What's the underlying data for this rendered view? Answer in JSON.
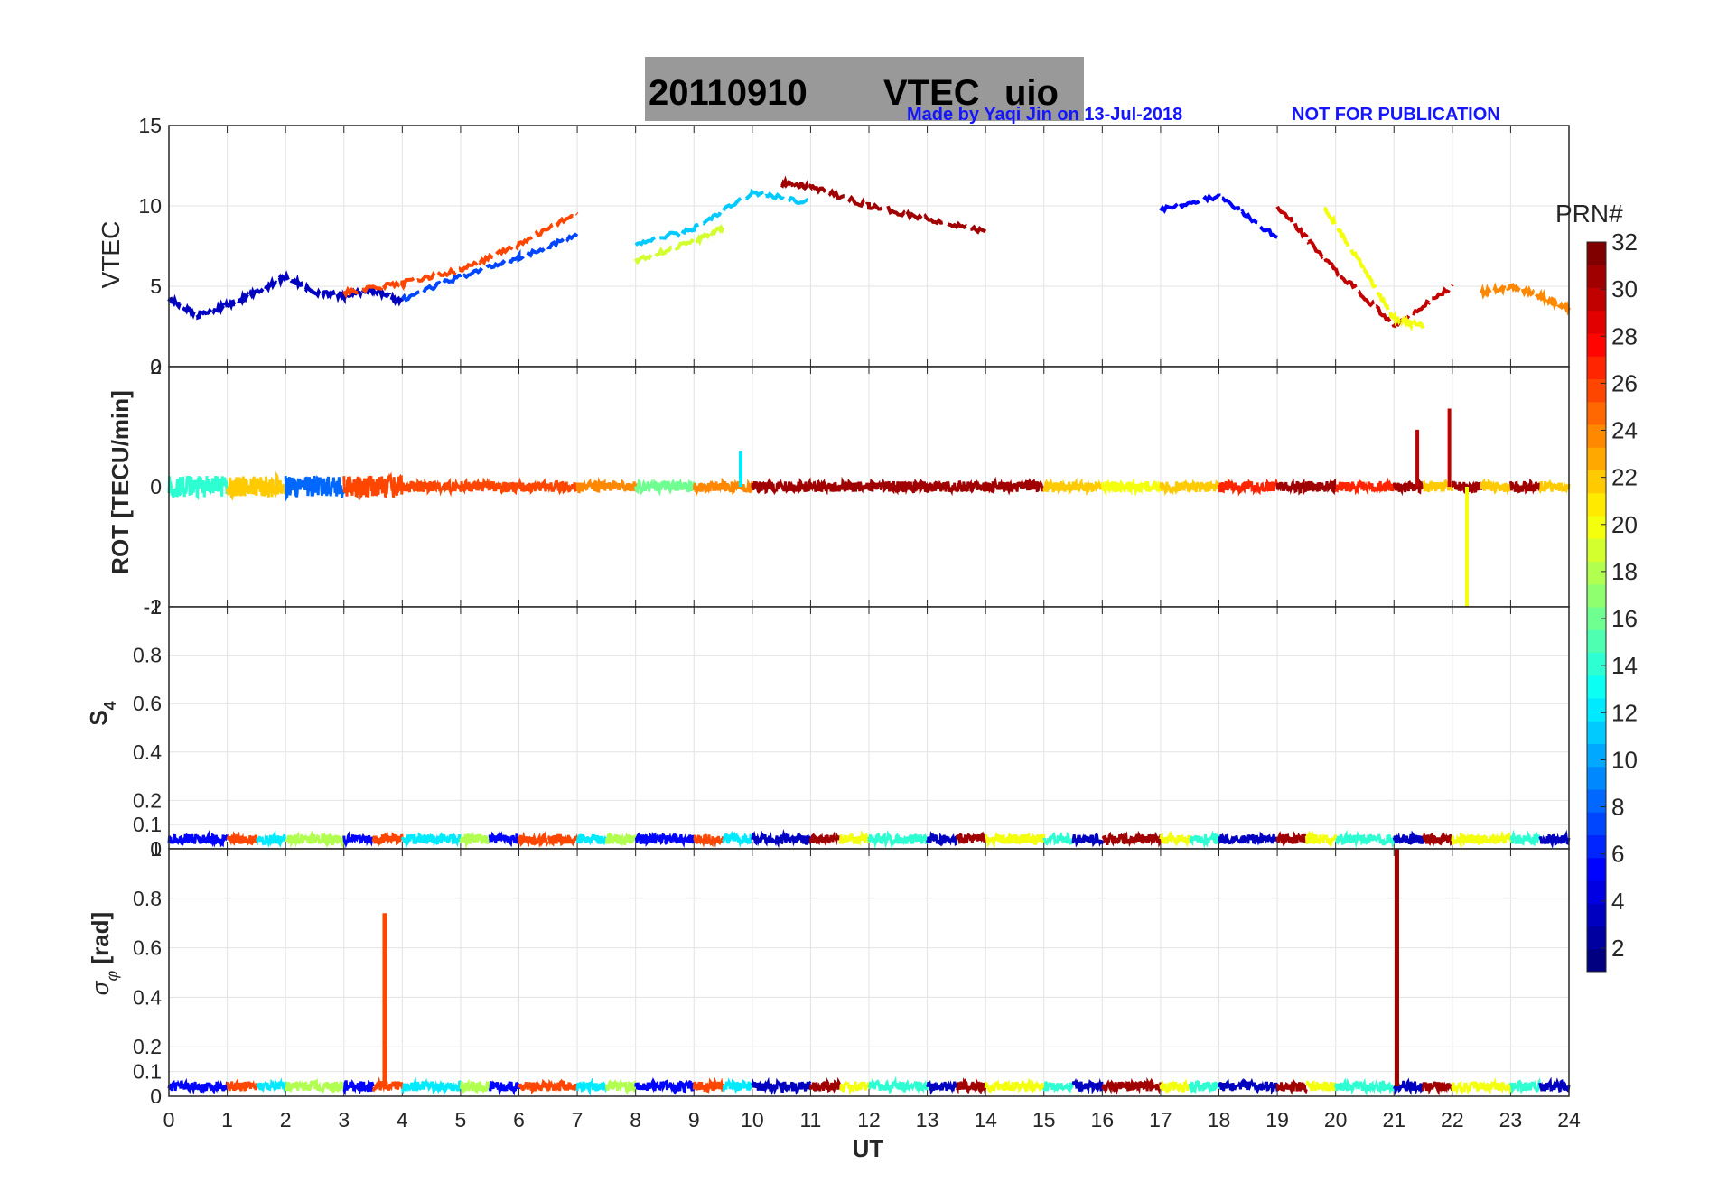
{
  "title": {
    "date": "20110910",
    "product": "VTEC",
    "station": "uio"
  },
  "credit": {
    "author_note": "Made by Yaqi Jin on 13-Jul-2018",
    "notice": "NOT FOR PUBLICATION"
  },
  "colorbar": {
    "label": "PRN#",
    "ticks": [
      "32",
      "30",
      "28",
      "26",
      "24",
      "22",
      "20",
      "18",
      "16",
      "14",
      "12",
      "10",
      "8",
      "6",
      "4",
      "2"
    ],
    "range": [
      1,
      32
    ]
  },
  "chart_data": [
    {
      "type": "line",
      "panel": "vtec",
      "ylabel": "VTEC",
      "xlabel": "UT",
      "xlim": [
        0,
        24
      ],
      "ylim": [
        0,
        15
      ],
      "yticks": [
        "15",
        "10",
        "5",
        "0"
      ],
      "series": [
        {
          "name": "PRN 3",
          "prn": 3,
          "x": [
            0,
            0.5,
            1,
            1.5,
            2,
            2.5,
            3,
            3.5,
            4
          ],
          "y": [
            4.2,
            3.2,
            3.8,
            4.6,
            5.6,
            4.6,
            4.4,
            4.8,
            4.0
          ]
        },
        {
          "name": "PRN 7",
          "prn": 7,
          "x": [
            4,
            5,
            6,
            7
          ],
          "y": [
            4.2,
            5.6,
            6.8,
            8.2
          ]
        },
        {
          "name": "PRN 11",
          "prn": 11,
          "x": [
            8,
            9,
            10,
            11
          ],
          "y": [
            7.6,
            8.6,
            10.8,
            10.2
          ]
        },
        {
          "name": "PRN 26",
          "prn": 26,
          "x": [
            3,
            4,
            5,
            6,
            7
          ],
          "y": [
            4.6,
            5.2,
            6.0,
            7.6,
            9.6
          ]
        },
        {
          "name": "PRN 19",
          "prn": 19,
          "x": [
            8,
            9,
            9.5
          ],
          "y": [
            6.6,
            7.8,
            8.6
          ]
        },
        {
          "name": "PRN 31",
          "prn": 31,
          "x": [
            10.5,
            11,
            12,
            13,
            14
          ],
          "y": [
            11.4,
            11.2,
            10.0,
            9.2,
            8.4
          ]
        },
        {
          "name": "PRN 5",
          "prn": 5,
          "x": [
            17,
            18,
            19
          ],
          "y": [
            9.8,
            10.6,
            8.0
          ]
        },
        {
          "name": "PRN 30",
          "prn": 30,
          "x": [
            19,
            20,
            21,
            22
          ],
          "y": [
            10.0,
            6.0,
            2.6,
            5.0
          ]
        },
        {
          "name": "PRN 20",
          "prn": 20,
          "x": [
            19.8,
            20.5,
            21,
            21.5
          ],
          "y": [
            10.0,
            6.0,
            3.0,
            2.5
          ]
        },
        {
          "name": "PRN 24",
          "prn": 24,
          "x": [
            22.5,
            23,
            23.5,
            24
          ],
          "y": [
            4.6,
            5.0,
            4.4,
            3.6
          ]
        }
      ]
    },
    {
      "type": "line",
      "panel": "rot",
      "ylabel": "ROT [TECU/min]",
      "xlabel": "UT",
      "xlim": [
        0,
        24
      ],
      "ylim": [
        -2,
        2
      ],
      "yticks": [
        "2",
        "0",
        "-2"
      ],
      "annotations": [
        {
          "x": 21.4,
          "y": 0.95,
          "prn": 30
        },
        {
          "x": 21.95,
          "y": 1.3,
          "prn": 30
        },
        {
          "x": 22.25,
          "y": -2.0,
          "prn": 20
        },
        {
          "x": 9.8,
          "y": 0.6,
          "prn": 12
        }
      ]
    },
    {
      "type": "line",
      "panel": "s4",
      "ylabel": "S4",
      "xlabel": "UT",
      "xlim": [
        0,
        24
      ],
      "ylim": [
        0,
        1
      ],
      "yticks": [
        "1",
        "0.8",
        "0.6",
        "0.4",
        "0.2",
        "0.1",
        "0"
      ],
      "typical_level": 0.04
    },
    {
      "type": "line",
      "panel": "sigma_phi",
      "ylabel": "σφ [rad]",
      "xlabel": "UT",
      "xlim": [
        0,
        24
      ],
      "ylim": [
        0,
        1
      ],
      "yticks": [
        "1",
        "0.8",
        "0.6",
        "0.4",
        "0.2",
        "0.1",
        "0"
      ],
      "xticks": [
        "0",
        "1",
        "2",
        "3",
        "4",
        "5",
        "6",
        "7",
        "8",
        "9",
        "10",
        "11",
        "12",
        "13",
        "14",
        "15",
        "16",
        "17",
        "18",
        "19",
        "20",
        "21",
        "22",
        "23",
        "24"
      ],
      "spikes": [
        {
          "x": 3.7,
          "y": 0.74,
          "prn": 26
        },
        {
          "x": 21.05,
          "y": 1.0,
          "prn": 31
        }
      ],
      "typical_level": 0.04
    }
  ]
}
